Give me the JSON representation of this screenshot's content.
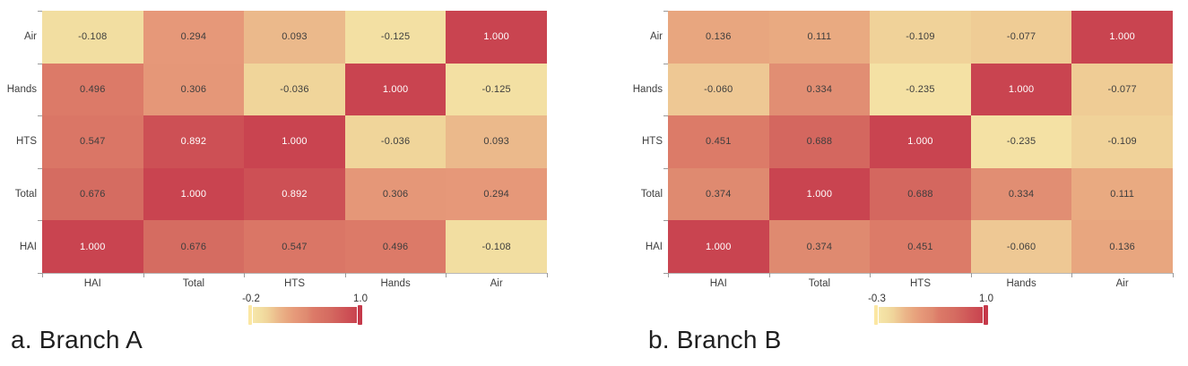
{
  "chart_data": [
    {
      "type": "heatmap",
      "caption": "a. Branch A",
      "row_labels": [
        "Air",
        "Hands",
        "HTS",
        "Total",
        "HAI"
      ],
      "col_labels": [
        "HAI",
        "Total",
        "HTS",
        "Hands",
        "Air"
      ],
      "values": [
        [
          -0.108,
          0.294,
          0.093,
          -0.125,
          1.0
        ],
        [
          0.496,
          0.306,
          -0.036,
          1.0,
          -0.125
        ],
        [
          0.547,
          0.892,
          1.0,
          -0.036,
          0.093
        ],
        [
          0.676,
          1.0,
          0.892,
          0.306,
          0.294
        ],
        [
          1.0,
          0.676,
          0.547,
          0.496,
          -0.108
        ]
      ],
      "vmin": -0.2,
      "vmax": 1.0,
      "colorbar": {
        "min_label": "-0.2",
        "max_label": "1.0"
      },
      "value_format_decimals": 3,
      "legend_position": "bottom-center",
      "grid": false
    },
    {
      "type": "heatmap",
      "caption": "b. Branch B",
      "row_labels": [
        "Air",
        "Hands",
        "HTS",
        "Total",
        "HAI"
      ],
      "col_labels": [
        "HAI",
        "Total",
        "HTS",
        "Hands",
        "Air"
      ],
      "values": [
        [
          0.136,
          0.111,
          -0.109,
          -0.077,
          1.0
        ],
        [
          -0.06,
          0.334,
          -0.235,
          1.0,
          -0.077
        ],
        [
          0.451,
          0.688,
          1.0,
          -0.235,
          -0.109
        ],
        [
          0.374,
          1.0,
          0.688,
          0.334,
          0.111
        ],
        [
          1.0,
          0.374,
          0.451,
          -0.06,
          0.136
        ]
      ],
      "vmin": -0.3,
      "vmax": 1.0,
      "colorbar": {
        "min_label": "-0.3",
        "max_label": "1.0"
      },
      "value_format_decimals": 3,
      "legend_position": "bottom-center",
      "grid": false
    }
  ],
  "style": {
    "colormap_stops": [
      [
        0.0,
        "#f6e6a9"
      ],
      [
        0.08,
        "#f2dea1"
      ],
      [
        0.14,
        "#f0d49a"
      ],
      [
        0.25,
        "#ebb78a"
      ],
      [
        0.34,
        "#e8a57e"
      ],
      [
        0.41,
        "#e69879"
      ],
      [
        0.52,
        "#df8a70"
      ],
      [
        0.58,
        "#dc7a68"
      ],
      [
        0.73,
        "#d56c61"
      ],
      [
        0.91,
        "#cd5055"
      ],
      [
        1.0,
        "#c94450"
      ]
    ],
    "white_text_threshold": 0.85,
    "cell_text_dark": "#3d3d3d",
    "cell_text_light": "#ffffff",
    "colorbar_cap_min_color": "#fbe7a3",
    "colorbar_cap_max_color": "#c5394a",
    "axis_tick_color": "#9a9a9a"
  }
}
